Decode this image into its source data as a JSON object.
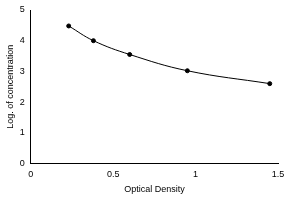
{
  "chart_data": {
    "type": "line",
    "x_label": "Optical Density",
    "y_label": "Log. of concentration",
    "x": [
      0.23,
      0.38,
      0.6,
      0.95,
      1.45
    ],
    "values": [
      4.48,
      4.0,
      3.55,
      3.02,
      2.6
    ],
    "color": "#000000",
    "marker": "circle",
    "line_style": "solid",
    "xlim": [
      0,
      1.5
    ],
    "xticks": [
      0,
      0.5,
      1,
      1.5
    ],
    "ylim": [
      0,
      5
    ],
    "yticks": [
      0,
      1,
      2,
      3,
      4,
      5
    ],
    "grid": false
  }
}
